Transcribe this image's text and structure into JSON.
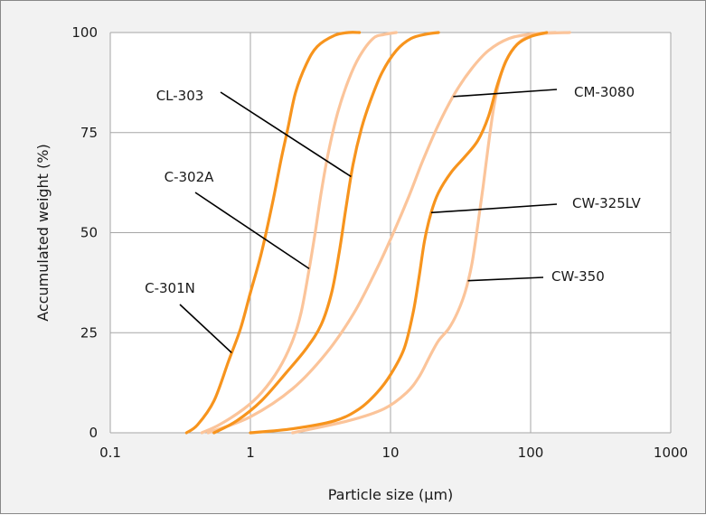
{
  "chart_data": {
    "type": "line",
    "xlabel": "Particle size (µm)",
    "ylabel": "Accumulated weight (%)",
    "xscale": "log",
    "xlim": [
      0.1,
      1000
    ],
    "ylim": [
      0,
      100
    ],
    "xticks": [
      "0.1",
      "1",
      "10",
      "100",
      "1000"
    ],
    "yticks": [
      "0",
      "25",
      "50",
      "75",
      "100"
    ],
    "grid": true,
    "legend": "none",
    "colors": {
      "dark": "#F7941D",
      "light": "#FBC49A",
      "background": "#F2F2F2",
      "plot": "#FFFFFF"
    },
    "series": [
      {
        "name": "C-301N",
        "color": "dark",
        "points": [
          [
            0.35,
            0
          ],
          [
            0.42,
            2
          ],
          [
            0.55,
            8
          ],
          [
            0.7,
            18
          ],
          [
            0.85,
            26
          ],
          [
            1.0,
            35
          ],
          [
            1.2,
            45
          ],
          [
            1.45,
            58
          ],
          [
            1.65,
            68
          ],
          [
            1.85,
            76
          ],
          [
            2.1,
            85
          ],
          [
            2.5,
            92
          ],
          [
            3.0,
            96.5
          ],
          [
            4.0,
            99.3
          ],
          [
            5.0,
            100
          ],
          [
            6.0,
            100
          ]
        ]
      },
      {
        "name": "C-302A",
        "color": "light",
        "points": [
          [
            0.45,
            0
          ],
          [
            0.6,
            2
          ],
          [
            0.9,
            6
          ],
          [
            1.2,
            10
          ],
          [
            1.6,
            16
          ],
          [
            2.0,
            23
          ],
          [
            2.3,
            30
          ],
          [
            2.6,
            40
          ],
          [
            2.9,
            50
          ],
          [
            3.2,
            60
          ],
          [
            3.6,
            70
          ],
          [
            4.2,
            80
          ],
          [
            5.0,
            88
          ],
          [
            6.0,
            94
          ],
          [
            7.5,
            98.5
          ],
          [
            9.0,
            99.5
          ],
          [
            11.0,
            100
          ]
        ]
      },
      {
        "name": "CL-303",
        "color": "dark",
        "points": [
          [
            0.55,
            0
          ],
          [
            0.8,
            3
          ],
          [
            1.2,
            8
          ],
          [
            1.8,
            15
          ],
          [
            2.5,
            21
          ],
          [
            3.2,
            27
          ],
          [
            3.8,
            35
          ],
          [
            4.3,
            45
          ],
          [
            4.8,
            56
          ],
          [
            5.4,
            67
          ],
          [
            6.2,
            76
          ],
          [
            7.2,
            83
          ],
          [
            8.7,
            90
          ],
          [
            11,
            95.5
          ],
          [
            14,
            98.5
          ],
          [
            18,
            99.6
          ],
          [
            22,
            100
          ]
        ]
      },
      {
        "name": "CM-3080",
        "color": "light",
        "points": [
          [
            0.5,
            0
          ],
          [
            1.0,
            4
          ],
          [
            2.0,
            11
          ],
          [
            3.5,
            20
          ],
          [
            5.5,
            30
          ],
          [
            8.0,
            41
          ],
          [
            10.5,
            50
          ],
          [
            13.5,
            59
          ],
          [
            17,
            68
          ],
          [
            22,
            77
          ],
          [
            29,
            85
          ],
          [
            38,
            91
          ],
          [
            50,
            95.5
          ],
          [
            70,
            98.5
          ],
          [
            100,
            99.6
          ],
          [
            150,
            100
          ]
        ]
      },
      {
        "name": "CW-325LV",
        "color": "dark",
        "points": [
          [
            1.0,
            0
          ],
          [
            2.0,
            1
          ],
          [
            4.0,
            3
          ],
          [
            6.0,
            6
          ],
          [
            8.0,
            10
          ],
          [
            10,
            14.5
          ],
          [
            12.5,
            21
          ],
          [
            14.5,
            30
          ],
          [
            16,
            39
          ],
          [
            17.5,
            48
          ],
          [
            19.5,
            55
          ],
          [
            22,
            60
          ],
          [
            27,
            65
          ],
          [
            34,
            69
          ],
          [
            42,
            73
          ],
          [
            50,
            79
          ],
          [
            58,
            87
          ],
          [
            67,
            93
          ],
          [
            80,
            97
          ],
          [
            100,
            99
          ],
          [
            130,
            100
          ]
        ]
      },
      {
        "name": "CW-350",
        "color": "light",
        "points": [
          [
            2.0,
            0
          ],
          [
            5.0,
            3
          ],
          [
            9.0,
            6
          ],
          [
            13,
            10
          ],
          [
            16,
            14
          ],
          [
            19,
            19
          ],
          [
            22,
            23
          ],
          [
            26,
            26
          ],
          [
            30,
            30
          ],
          [
            34,
            35
          ],
          [
            38,
            42
          ],
          [
            42,
            52
          ],
          [
            46,
            62
          ],
          [
            50,
            72
          ],
          [
            55,
            82
          ],
          [
            62,
            90
          ],
          [
            72,
            95
          ],
          [
            90,
            98.5
          ],
          [
            120,
            99.7
          ],
          [
            190,
            100
          ]
        ]
      }
    ],
    "annotations": [
      {
        "text": "CL-303",
        "target_series": "CL-303"
      },
      {
        "text": "C-302A",
        "target_series": "C-302A"
      },
      {
        "text": "C-301N",
        "target_series": "C-301N"
      },
      {
        "text": "CM-3080",
        "target_series": "CM-3080"
      },
      {
        "text": "CW-325LV",
        "target_series": "CW-325LV"
      },
      {
        "text": "CW-350",
        "target_series": "CW-350"
      }
    ]
  }
}
